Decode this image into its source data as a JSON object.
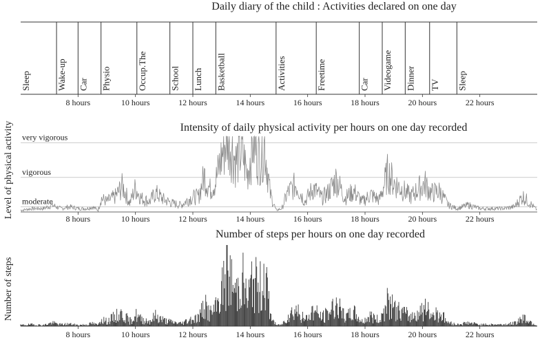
{
  "chart_data": [
    {
      "type": "timeline",
      "title": "Daily diary of the child : Activities declared on one day",
      "activities": [
        {
          "label": "Sleep",
          "start": 6.0,
          "end": 7.25
        },
        {
          "label": "Wake-up",
          "start": 7.25,
          "end": 8.0
        },
        {
          "label": "Car",
          "start": 8.0,
          "end": 8.8
        },
        {
          "label": "Physio",
          "start": 8.8,
          "end": 10.05
        },
        {
          "label": "Occup.The",
          "start": 10.05,
          "end": 11.2
        },
        {
          "label": "School",
          "start": 11.2,
          "end": 12.0
        },
        {
          "label": "Lunch",
          "start": 12.0,
          "end": 12.8
        },
        {
          "label": "Basketball",
          "start": 12.8,
          "end": 14.9
        },
        {
          "label": "Activities",
          "start": 14.9,
          "end": 16.3
        },
        {
          "label": "Freetime",
          "start": 16.3,
          "end": 17.8
        },
        {
          "label": "Car",
          "start": 17.8,
          "end": 18.6
        },
        {
          "label": "Videogame",
          "start": 18.6,
          "end": 19.4
        },
        {
          "label": "Dinner",
          "start": 19.4,
          "end": 20.25
        },
        {
          "label": "TV",
          "start": 20.25,
          "end": 21.2
        },
        {
          "label": "Sleep",
          "start": 21.2,
          "end": 24.0
        }
      ],
      "xlim": [
        6,
        24
      ],
      "xticks": [
        "8 hours",
        "10 hours",
        "12 hours",
        "14 hours",
        "16 hours",
        "18 hours",
        "20 hours",
        "22 hours"
      ]
    },
    {
      "type": "line",
      "title": "Intensity of daily physical activity per hours on one day recorded",
      "ylabel": "Level of physical activity",
      "xlim": [
        6,
        24
      ],
      "ylim": [
        0,
        4.3
      ],
      "levels": [
        {
          "label": "very vigorous",
          "value": 4.0
        },
        {
          "label": "vigorous",
          "value": 2.0
        },
        {
          "label": "moderate",
          "value": 0.3
        }
      ],
      "xticks": [
        "8 hours",
        "10 hours",
        "12 hours",
        "14 hours",
        "16 hours",
        "18 hours",
        "20 hours",
        "22 hours"
      ],
      "series": [
        {
          "x": [
            6.0,
            6.4,
            6.8,
            7.1,
            7.4,
            7.7,
            8.0,
            8.3,
            8.5,
            8.7,
            8.8,
            9.0,
            9.3,
            9.55,
            9.8,
            10.0,
            10.2,
            10.5,
            10.7,
            11.0,
            11.3,
            11.6,
            11.9,
            12.2,
            12.4,
            12.6,
            12.8,
            13.0,
            13.2,
            13.5,
            13.7,
            13.9,
            14.1,
            14.3,
            14.5,
            14.7,
            14.9,
            15.1,
            15.3,
            15.6,
            15.9,
            16.2,
            16.5,
            16.7,
            17.0,
            17.3,
            17.6,
            17.9,
            18.2,
            18.5,
            18.8,
            19.0,
            19.3,
            19.6,
            19.9,
            20.1,
            20.3,
            20.6,
            20.9,
            21.2,
            21.6,
            22.0,
            22.4,
            22.8,
            23.2,
            23.5,
            24.0
          ],
          "y": [
            0.1,
            0.2,
            0.2,
            0.4,
            0.2,
            0.3,
            0.2,
            0.2,
            0.3,
            0.1,
            0.8,
            0.6,
            0.9,
            1.5,
            0.5,
            1.4,
            0.8,
            0.6,
            1.1,
            0.7,
            0.5,
            0.4,
            0.8,
            0.9,
            2.1,
            1.3,
            1.8,
            3.2,
            4.5,
            2.9,
            3.6,
            2.2,
            4.1,
            3.2,
            3.9,
            1.0,
            0.1,
            0.2,
            1.1,
            1.6,
            0.6,
            1.4,
            0.8,
            1.1,
            1.9,
            0.8,
            1.2,
            0.6,
            1.0,
            0.7,
            2.3,
            1.7,
            1.3,
            0.9,
            1.4,
            1.6,
            1.1,
            1.2,
            0.4,
            0.2,
            0.4,
            0.2,
            0.2,
            0.2,
            0.3,
            0.9,
            0.1
          ]
        }
      ]
    },
    {
      "type": "bar",
      "title": "Number of steps per hours on one day recorded",
      "ylabel": "Number of steps",
      "xlim": [
        6,
        24
      ],
      "ylim": [
        0,
        100
      ],
      "xticks": [
        "8 hours",
        "10 hours",
        "12 hours",
        "14 hours",
        "16 hours",
        "18 hours",
        "20 hours",
        "22 hours"
      ],
      "series": [
        {
          "x": [
            6.0,
            6.4,
            6.8,
            7.1,
            7.4,
            7.7,
            8.0,
            8.3,
            8.5,
            8.7,
            8.8,
            9.0,
            9.3,
            9.55,
            9.8,
            10.0,
            10.2,
            10.5,
            10.7,
            11.0,
            11.3,
            11.6,
            11.9,
            12.2,
            12.4,
            12.6,
            12.8,
            13.0,
            13.2,
            13.5,
            13.7,
            13.9,
            14.1,
            14.3,
            14.5,
            14.7,
            14.9,
            15.1,
            15.3,
            15.6,
            15.9,
            16.2,
            16.5,
            16.7,
            17.0,
            17.3,
            17.6,
            17.9,
            18.2,
            18.5,
            18.8,
            19.0,
            19.3,
            19.6,
            19.9,
            20.1,
            20.3,
            20.6,
            20.9,
            21.2,
            21.6,
            22.0,
            22.4,
            22.8,
            23.2,
            23.5,
            24.0
          ],
          "y": [
            2,
            3,
            2,
            6,
            3,
            4,
            2,
            3,
            5,
            2,
            14,
            8,
            17,
            22,
            8,
            20,
            12,
            9,
            18,
            10,
            7,
            5,
            12,
            15,
            36,
            22,
            30,
            60,
            98,
            55,
            90,
            45,
            85,
            60,
            95,
            20,
            2,
            3,
            18,
            30,
            10,
            28,
            15,
            22,
            40,
            14,
            24,
            8,
            18,
            10,
            42,
            30,
            24,
            16,
            26,
            30,
            20,
            24,
            6,
            3,
            6,
            3,
            3,
            3,
            5,
            16,
            1
          ]
        }
      ]
    }
  ]
}
